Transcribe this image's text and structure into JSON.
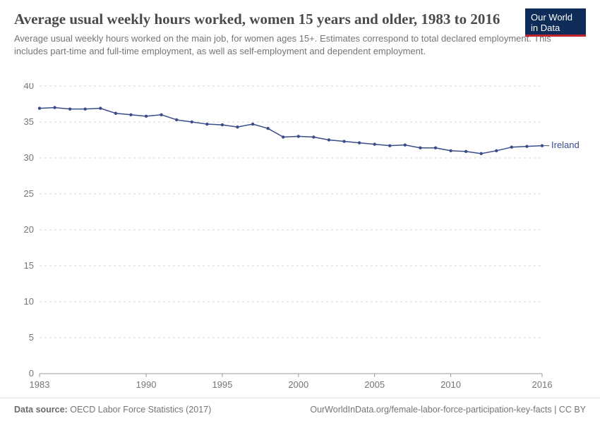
{
  "header": {
    "title": "Average usual weekly hours worked, women 15 years and older, 1983 to 2016",
    "subtitle": "Average usual weekly hours worked on the main job, for women ages 15+. Estimates correspond to total declared employment. This includes part-time and full-time employment, as well as self-employment and dependent employment.",
    "logo_line1": "Our World",
    "logo_line2": "in Data"
  },
  "chart": {
    "type": "line",
    "background_color": "#ffffff",
    "grid_color": "#d6d6d6",
    "axis_color": "#9b9b9b",
    "tick_font_color": "#757575",
    "tick_fontsize": 13,
    "ylim": [
      0,
      40
    ],
    "ytick_step": 5,
    "xlim": [
      1983,
      2016
    ],
    "x_ticks": [
      1983,
      1990,
      1995,
      2000,
      2005,
      2010,
      2016
    ],
    "series": [
      {
        "name": "Ireland",
        "color": "#3a4c8a",
        "line_width": 1.5,
        "marker": "circle",
        "marker_size": 2.2,
        "years": [
          1983,
          1984,
          1985,
          1986,
          1987,
          1988,
          1989,
          1990,
          1991,
          1992,
          1993,
          1994,
          1995,
          1996,
          1997,
          1998,
          1999,
          2000,
          2001,
          2002,
          2003,
          2004,
          2005,
          2006,
          2007,
          2008,
          2009,
          2010,
          2011,
          2012,
          2013,
          2014,
          2015,
          2016
        ],
        "values": [
          36.9,
          37.0,
          36.8,
          36.8,
          36.9,
          36.2,
          36.0,
          35.8,
          36.0,
          35.3,
          35.0,
          34.7,
          34.6,
          34.3,
          34.7,
          34.1,
          32.9,
          33.0,
          32.9,
          32.5,
          32.3,
          32.1,
          31.9,
          31.7,
          31.8,
          31.4,
          31.4,
          31.0,
          30.9,
          30.6,
          31.0,
          31.5,
          31.6,
          31.7
        ]
      }
    ]
  },
  "footer": {
    "source_label": "Data source:",
    "source_text": "OECD Labor Force Statistics (2017)",
    "right_text": "OurWorldInData.org/female-labor-force-participation-key-facts | CC BY"
  }
}
